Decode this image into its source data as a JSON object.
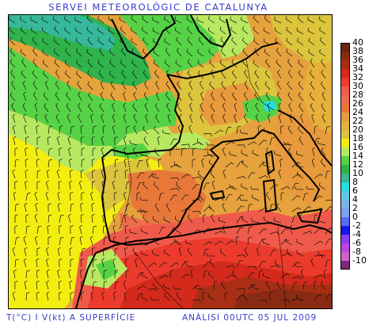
{
  "header": {
    "title": "SERVEI METEOROLÒGIC DE CATALUNYA"
  },
  "footer": {
    "left": "T(°C) I V(kt) A SUPERFÍCIE",
    "right": "ANÀLISI 00UTC 05 JUL 2009"
  },
  "legend": {
    "unit": "°C",
    "entries": [
      {
        "label": "40",
        "color": "#6b2310"
      },
      {
        "label": "38",
        "color": "#8a2a12"
      },
      {
        "label": "36",
        "color": "#a82e14"
      },
      {
        "label": "34",
        "color": "#d42a1c"
      },
      {
        "label": "32",
        "color": "#ec3b2c"
      },
      {
        "label": "30",
        "color": "#f05a4a"
      },
      {
        "label": "28",
        "color": "#ee6c4c"
      },
      {
        "label": "26",
        "color": "#e8783a"
      },
      {
        "label": "24",
        "color": "#e89a3c"
      },
      {
        "label": "22",
        "color": "#e6b03a"
      },
      {
        "label": "20",
        "color": "#dcc43c"
      },
      {
        "label": "18",
        "color": "#f4ee10"
      },
      {
        "label": "16",
        "color": "#b8e860"
      },
      {
        "label": "14",
        "color": "#56d246"
      },
      {
        "label": "12",
        "color": "#2fb34a"
      },
      {
        "label": "10",
        "color": "#36b89a"
      },
      {
        "label": "8",
        "color": "#20e0e0"
      },
      {
        "label": "6",
        "color": "#60c8e8"
      },
      {
        "label": "4",
        "color": "#80b0ec"
      },
      {
        "label": "2",
        "color": "#7aa0f0"
      },
      {
        "label": "0",
        "color": "#5a6af0"
      },
      {
        "label": "-2",
        "color": "#1818e8"
      },
      {
        "label": "-4",
        "color": "#8a3cf0"
      },
      {
        "label": "-6",
        "color": "#c040e8"
      },
      {
        "label": "-8",
        "color": "#d060c8"
      },
      {
        "label": "-10",
        "color": "#7a2a7a"
      }
    ]
  }
}
